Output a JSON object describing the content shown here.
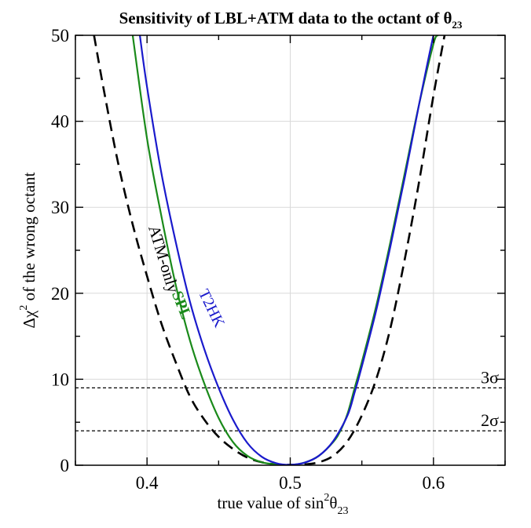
{
  "chart_data": {
    "type": "line",
    "title_main": "Sensitivity of LBL+ATM data to the octant of θ",
    "title_sub": "23",
    "xlabel_main": "true value of  sin",
    "xlabel_sup": "2",
    "xlabel_theta": "θ",
    "xlabel_sub": "23",
    "ylabel_main": "Δχ",
    "ylabel_sup": "2",
    "ylabel_rest": " of the wrong octant",
    "xlim": [
      0.35,
      0.65
    ],
    "ylim": [
      0,
      50
    ],
    "grid": true,
    "x_ticks": [
      0.4,
      0.5,
      0.6
    ],
    "x_tick_labels": [
      "0.4",
      "0.5",
      "0.6"
    ],
    "y_ticks": [
      0,
      10,
      20,
      30,
      40,
      50
    ],
    "y_tick_labels": [
      "0",
      "10",
      "20",
      "30",
      "40",
      "50"
    ],
    "reference_lines": [
      {
        "label": "3σ",
        "y": 9
      },
      {
        "label": "2σ",
        "y": 4
      }
    ],
    "series": [
      {
        "name": "ATM-only",
        "color": "#000000",
        "style": "dashed",
        "x": [
          0.363,
          0.37,
          0.38,
          0.39,
          0.4,
          0.41,
          0.42,
          0.43,
          0.44,
          0.45,
          0.46,
          0.47,
          0.48,
          0.49,
          0.5,
          0.51,
          0.52,
          0.53,
          0.54,
          0.55,
          0.56,
          0.57,
          0.58,
          0.59,
          0.6,
          0.61
        ],
        "y": [
          50,
          43.5,
          35,
          28,
          22,
          16.5,
          12,
          8,
          5.3,
          3.3,
          1.9,
          0.9,
          0.35,
          0.1,
          0.05,
          0.1,
          0.35,
          1.1,
          2.8,
          5.8,
          10,
          16,
          24,
          33,
          43,
          52
        ]
      },
      {
        "name": "SPL",
        "color": "#1a8a1a",
        "style": "solid",
        "x": [
          0.39,
          0.4,
          0.41,
          0.42,
          0.43,
          0.44,
          0.45,
          0.46,
          0.47,
          0.48,
          0.49,
          0.5,
          0.51,
          0.52,
          0.53,
          0.535,
          0.54,
          0.545,
          0.55,
          0.56,
          0.57,
          0.58,
          0.59,
          0.6,
          0.603
        ],
        "y": [
          50,
          38,
          29,
          21,
          14.5,
          9.5,
          5.5,
          2.7,
          1.1,
          0.35,
          0.1,
          0.05,
          0.3,
          1.1,
          2.7,
          4,
          6,
          9,
          12,
          18.5,
          26,
          34,
          42,
          49,
          50
        ]
      },
      {
        "name": "T2HK",
        "color": "#1a1acc",
        "style": "solid",
        "x": [
          0.395,
          0.4,
          0.41,
          0.42,
          0.43,
          0.44,
          0.45,
          0.46,
          0.47,
          0.48,
          0.49,
          0.5,
          0.51,
          0.52,
          0.53,
          0.54,
          0.545,
          0.55,
          0.56,
          0.57,
          0.58,
          0.59,
          0.6,
          0.605
        ],
        "y": [
          50,
          44,
          34,
          26,
          19,
          13.5,
          9,
          5.3,
          2.6,
          1,
          0.25,
          0.05,
          0.3,
          1.1,
          2.8,
          5.8,
          8.5,
          11.5,
          18,
          25.5,
          33.5,
          42,
          50,
          53
        ]
      }
    ],
    "annotations": [
      {
        "text": "ATM-only",
        "series": 0
      },
      {
        "text": "SPL",
        "series": 1
      },
      {
        "text": "T2HK",
        "series": 2
      }
    ]
  }
}
